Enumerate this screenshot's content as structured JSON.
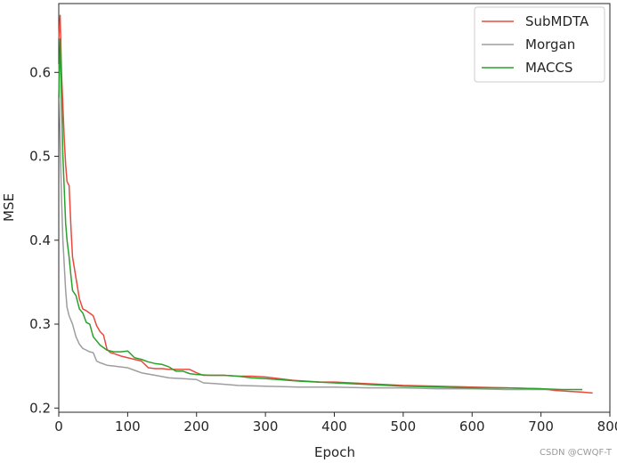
{
  "chart_data": {
    "type": "line",
    "title": "",
    "xlabel": "Epoch",
    "ylabel": "MSE",
    "xlim": [
      0,
      800
    ],
    "ylim": [
      0.195,
      0.682
    ],
    "xticks": [
      "0",
      "100",
      "200",
      "300",
      "400",
      "500",
      "600",
      "700",
      "800"
    ],
    "xtick_values": [
      0,
      100,
      200,
      300,
      400,
      500,
      600,
      700,
      800
    ],
    "yticks": [
      "0.2",
      "0.3",
      "0.4",
      "0.5",
      "0.6"
    ],
    "ytick_values": [
      0.2,
      0.3,
      0.4,
      0.5,
      0.6
    ],
    "grid": false,
    "legend_position": "top-right",
    "series": [
      {
        "name": "SubMDTA",
        "color": "#e8493d",
        "x": [
          0,
          2,
          4,
          6,
          8,
          10,
          12,
          15,
          18,
          20,
          25,
          30,
          35,
          40,
          45,
          50,
          55,
          60,
          65,
          70,
          75,
          80,
          90,
          100,
          110,
          120,
          130,
          140,
          150,
          160,
          170,
          180,
          190,
          200,
          210,
          220,
          240,
          260,
          280,
          300,
          320,
          340,
          360,
          380,
          400,
          450,
          500,
          550,
          600,
          650,
          700,
          720,
          740,
          760,
          775
        ],
        "y": [
          0.64,
          0.668,
          0.6,
          0.56,
          0.52,
          0.49,
          0.47,
          0.465,
          0.41,
          0.38,
          0.355,
          0.33,
          0.318,
          0.316,
          0.313,
          0.31,
          0.298,
          0.291,
          0.287,
          0.27,
          0.266,
          0.265,
          0.262,
          0.26,
          0.258,
          0.256,
          0.248,
          0.247,
          0.247,
          0.246,
          0.246,
          0.246,
          0.246,
          0.242,
          0.239,
          0.239,
          0.239,
          0.238,
          0.238,
          0.237,
          0.235,
          0.233,
          0.232,
          0.231,
          0.231,
          0.229,
          0.227,
          0.226,
          0.225,
          0.224,
          0.223,
          0.221,
          0.22,
          0.219,
          0.218
        ]
      },
      {
        "name": "Morgan",
        "color": "#9e9e9e",
        "x": [
          0,
          2,
          4,
          6,
          8,
          10,
          12,
          15,
          20,
          25,
          30,
          35,
          40,
          45,
          50,
          55,
          60,
          70,
          80,
          90,
          100,
          110,
          120,
          140,
          160,
          180,
          200,
          210,
          230,
          260,
          300,
          350,
          400,
          450,
          500,
          550,
          600,
          650,
          700,
          720
        ],
        "y": [
          0.61,
          0.52,
          0.45,
          0.4,
          0.37,
          0.34,
          0.32,
          0.31,
          0.3,
          0.285,
          0.276,
          0.271,
          0.269,
          0.267,
          0.266,
          0.256,
          0.254,
          0.251,
          0.25,
          0.249,
          0.248,
          0.245,
          0.242,
          0.239,
          0.236,
          0.235,
          0.234,
          0.23,
          0.229,
          0.227,
          0.226,
          0.225,
          0.225,
          0.224,
          0.224,
          0.223,
          0.223,
          0.222,
          0.222,
          0.222
        ]
      },
      {
        "name": "MACCS",
        "color": "#2ca02c",
        "x": [
          0,
          2,
          4,
          6,
          8,
          10,
          12,
          15,
          18,
          20,
          25,
          30,
          35,
          40,
          45,
          50,
          55,
          60,
          70,
          80,
          90,
          100,
          110,
          120,
          130,
          140,
          150,
          160,
          170,
          180,
          190,
          200,
          220,
          240,
          260,
          280,
          300,
          350,
          400,
          450,
          500,
          550,
          600,
          650,
          700,
          730,
          760
        ],
        "y": [
          0.57,
          0.64,
          0.57,
          0.5,
          0.46,
          0.42,
          0.4,
          0.38,
          0.355,
          0.34,
          0.334,
          0.318,
          0.313,
          0.302,
          0.3,
          0.285,
          0.28,
          0.275,
          0.269,
          0.267,
          0.267,
          0.268,
          0.26,
          0.258,
          0.255,
          0.253,
          0.252,
          0.249,
          0.244,
          0.244,
          0.241,
          0.24,
          0.239,
          0.239,
          0.238,
          0.236,
          0.235,
          0.232,
          0.23,
          0.228,
          0.226,
          0.225,
          0.224,
          0.224,
          0.223,
          0.222,
          0.222
        ]
      }
    ]
  },
  "watermark": "CSDN @CWQF-T"
}
